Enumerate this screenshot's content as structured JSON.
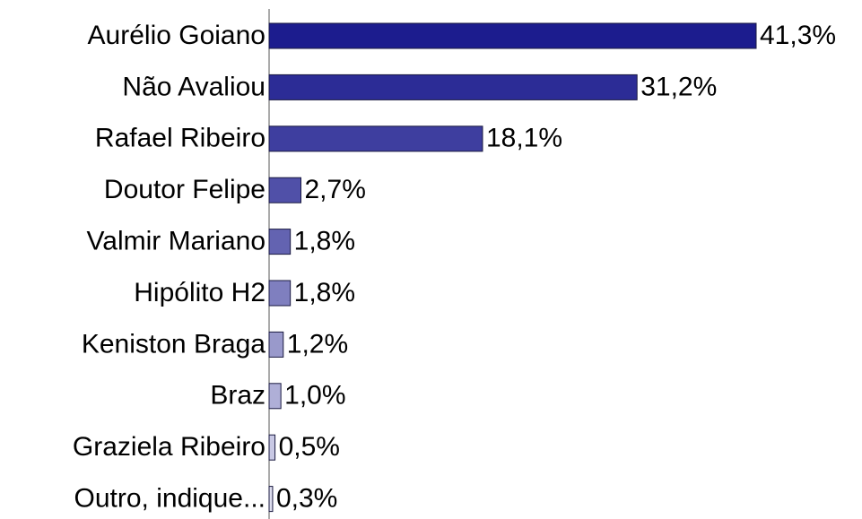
{
  "chart_data": {
    "type": "bar",
    "categories": [
      "Aurélio Goiano",
      "Não Avaliou",
      "Rafael Ribeiro",
      "Doutor Felipe",
      "Valmir Mariano",
      "Hipólito H2",
      "Keniston Braga",
      "Braz",
      "Graziela Ribeiro",
      "Outro, indique..."
    ],
    "values": [
      41.3,
      31.2,
      18.1,
      2.7,
      1.8,
      1.8,
      1.2,
      1.0,
      0.5,
      0.3
    ],
    "value_labels": [
      "41,3%",
      "31,2%",
      "18,1%",
      "2,7%",
      "1,8%",
      "1,8%",
      "1,2%",
      "1,0%",
      "0,5%",
      "0,3%"
    ],
    "colors": [
      "#1c1c8e",
      "#2c2c96",
      "#3e3e9f",
      "#5050a8",
      "#6363b1",
      "#7f7fbf",
      "#9999cb",
      "#afafd7",
      "#c8c8e4",
      "#dedeef"
    ]
  }
}
